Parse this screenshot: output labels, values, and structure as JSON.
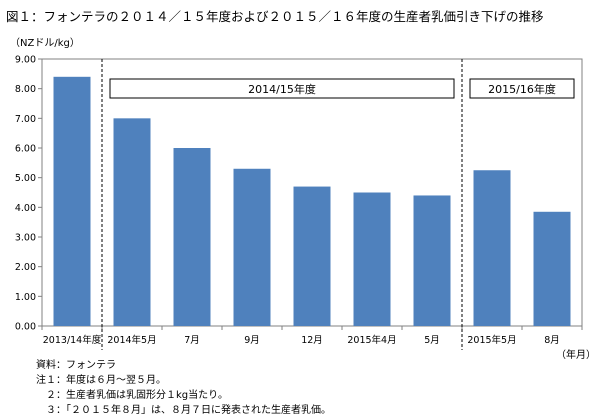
{
  "title": "図１：フォンテラの２０１４／１５年度および２０１５／１６年度の生産者乳価引き下げの推移",
  "notes": {
    "source": "資料：フォンテラ",
    "note1": "注１：年度は６月～翌５月。",
    "note2": "２：生産者乳価は乳固形分１kg当たり。",
    "note3": "３：「２０１５年８月」は、８月７日に発表された生産者乳価。"
  },
  "chart_data": {
    "type": "bar",
    "ylabel": "（NZドル/kg）",
    "xlabel": "（年月）",
    "ylim": [
      0,
      9
    ],
    "ytick_step": 1,
    "ytick_labels": [
      "0.00",
      "1.00",
      "2.00",
      "3.00",
      "4.00",
      "5.00",
      "6.00",
      "7.00",
      "8.00",
      "9.00"
    ],
    "categories": [
      "2013/14年度",
      "2014年5月",
      "7月",
      "9月",
      "12月",
      "2015年4月",
      "5月",
      "2015年5月",
      "8月"
    ],
    "values": [
      8.4,
      7.0,
      6.0,
      5.3,
      4.7,
      4.5,
      4.4,
      5.25,
      3.85
    ],
    "bar_color": "#4f81bd",
    "period_labels": [
      {
        "label": "2014/15年度",
        "from_index": 1,
        "to_index": 6
      },
      {
        "label": "2015/16年度",
        "from_index": 7,
        "to_index": 8
      }
    ],
    "dividers_after_index": [
      0,
      6
    ],
    "grid": false
  }
}
